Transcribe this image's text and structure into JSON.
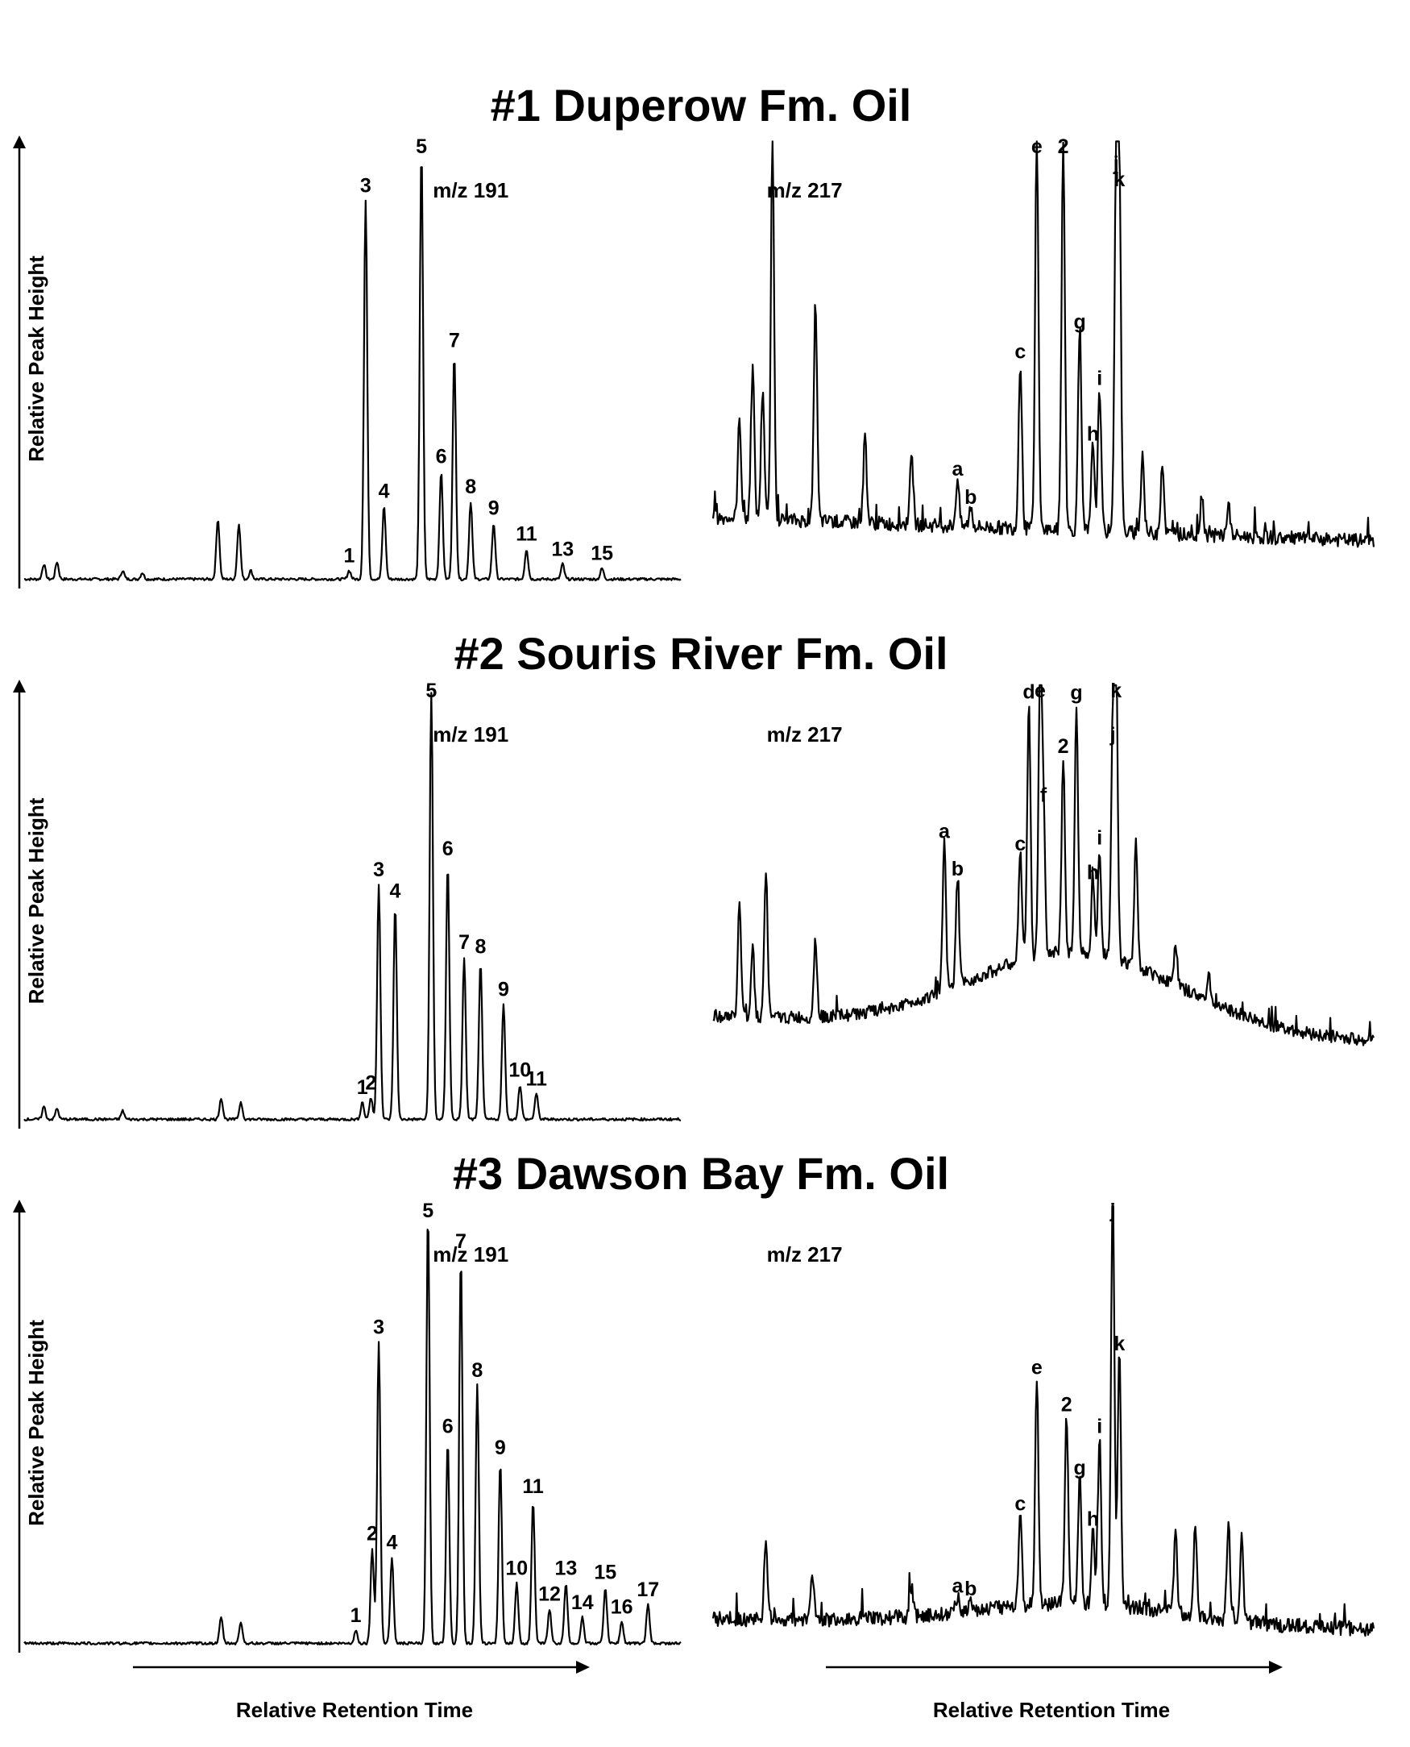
{
  "chart_data": [
    {
      "type": "line",
      "title": "#1 Duperow Fm. Oil",
      "ylabel": "Relative Peak Height",
      "xlabel": "",
      "traces": [
        {
          "label": "m/z 191",
          "peaks": [
            {
              "pos": 0.03,
              "height": 0.035
            },
            {
              "pos": 0.05,
              "height": 0.04
            },
            {
              "pos": 0.15,
              "height": 0.02
            },
            {
              "pos": 0.18,
              "height": 0.015
            },
            {
              "pos": 0.295,
              "height": 0.14
            },
            {
              "pos": 0.327,
              "height": 0.13
            },
            {
              "pos": 0.345,
              "height": 0.02
            },
            {
              "pos": 0.495,
              "height": 0.02,
              "label": "1"
            },
            {
              "pos": 0.52,
              "height": 0.88,
              "label": "3"
            },
            {
              "pos": 0.548,
              "height": 0.17,
              "label": "4"
            },
            {
              "pos": 0.605,
              "height": 1.0,
              "label": "5"
            },
            {
              "pos": 0.635,
              "height": 0.25,
              "label": "6"
            },
            {
              "pos": 0.655,
              "height": 0.52,
              "label": "7"
            },
            {
              "pos": 0.68,
              "height": 0.18,
              "label": "8"
            },
            {
              "pos": 0.715,
              "height": 0.13,
              "label": "9"
            },
            {
              "pos": 0.765,
              "height": 0.07,
              "label": "11"
            },
            {
              "pos": 0.82,
              "height": 0.035,
              "label": "13"
            },
            {
              "pos": 0.88,
              "height": 0.025,
              "label": "15"
            }
          ]
        },
        {
          "label": "m/z 217",
          "peaks": [
            {
              "pos": 0.04,
              "height": 0.25
            },
            {
              "pos": 0.06,
              "height": 0.38
            },
            {
              "pos": 0.075,
              "height": 0.32
            },
            {
              "pos": 0.09,
              "height": 0.95
            },
            {
              "pos": 0.155,
              "height": 0.55
            },
            {
              "pos": 0.23,
              "height": 0.22
            },
            {
              "pos": 0.3,
              "height": 0.18
            },
            {
              "pos": 0.37,
              "height": 0.12,
              "label": "a"
            },
            {
              "pos": 0.39,
              "height": 0.05,
              "label": "b"
            },
            {
              "pos": 0.465,
              "height": 0.42,
              "label": "c"
            },
            {
              "pos": 0.49,
              "height": 1.0,
              "label": "e"
            },
            {
              "pos": 0.53,
              "height": 0.98,
              "label": "2"
            },
            {
              "pos": 0.555,
              "height": 0.5,
              "label": "g"
            },
            {
              "pos": 0.575,
              "height": 0.22,
              "label": "h"
            },
            {
              "pos": 0.585,
              "height": 0.36,
              "label": "i"
            },
            {
              "pos": 0.61,
              "height": 0.9,
              "label": "j"
            },
            {
              "pos": 0.615,
              "height": 0.86,
              "label": "k"
            },
            {
              "pos": 0.65,
              "height": 0.2
            },
            {
              "pos": 0.68,
              "height": 0.18
            },
            {
              "pos": 0.74,
              "height": 0.1
            },
            {
              "pos": 0.78,
              "height": 0.08
            }
          ]
        }
      ]
    },
    {
      "type": "line",
      "title": "#2 Souris River Fm. Oil",
      "ylabel": "Relative Peak Height",
      "xlabel": "",
      "traces": [
        {
          "label": "m/z 191",
          "peaks": [
            {
              "pos": 0.03,
              "height": 0.03
            },
            {
              "pos": 0.05,
              "height": 0.025
            },
            {
              "pos": 0.15,
              "height": 0.02
            },
            {
              "pos": 0.3,
              "height": 0.05
            },
            {
              "pos": 0.33,
              "height": 0.04
            },
            {
              "pos": 0.515,
              "height": 0.04,
              "label": "1"
            },
            {
              "pos": 0.528,
              "height": 0.05,
              "label": "2"
            },
            {
              "pos": 0.54,
              "height": 0.55,
              "label": "3"
            },
            {
              "pos": 0.565,
              "height": 0.5,
              "label": "4"
            },
            {
              "pos": 0.62,
              "height": 1.0,
              "label": "5"
            },
            {
              "pos": 0.645,
              "height": 0.6,
              "label": "6"
            },
            {
              "pos": 0.67,
              "height": 0.38,
              "label": "7"
            },
            {
              "pos": 0.695,
              "height": 0.37,
              "label": "8"
            },
            {
              "pos": 0.73,
              "height": 0.27,
              "label": "9"
            },
            {
              "pos": 0.755,
              "height": 0.08,
              "label": "10"
            },
            {
              "pos": 0.78,
              "height": 0.06,
              "label": "11"
            }
          ]
        },
        {
          "label": "m/z 217",
          "peaks": [
            {
              "pos": 0.04,
              "height": 0.32
            },
            {
              "pos": 0.06,
              "height": 0.2
            },
            {
              "pos": 0.08,
              "height": 0.42
            },
            {
              "pos": 0.155,
              "height": 0.22
            },
            {
              "pos": 0.35,
              "height": 0.42,
              "label": "a"
            },
            {
              "pos": 0.37,
              "height": 0.3,
              "label": "b"
            },
            {
              "pos": 0.465,
              "height": 0.3,
              "label": "c"
            },
            {
              "pos": 0.478,
              "height": 0.72,
              "label": "d"
            },
            {
              "pos": 0.495,
              "height": 0.8,
              "label": "e"
            },
            {
              "pos": 0.5,
              "height": 0.42,
              "label": "f"
            },
            {
              "pos": 0.53,
              "height": 0.55,
              "label": "2"
            },
            {
              "pos": 0.55,
              "height": 0.7,
              "label": "g"
            },
            {
              "pos": 0.575,
              "height": 0.2,
              "label": "h"
            },
            {
              "pos": 0.585,
              "height": 0.3,
              "label": "i"
            },
            {
              "pos": 0.605,
              "height": 0.6,
              "label": "j"
            },
            {
              "pos": 0.61,
              "height": 0.85,
              "label": "k"
            },
            {
              "pos": 0.64,
              "height": 0.35
            },
            {
              "pos": 0.7,
              "height": 0.12
            },
            {
              "pos": 0.75,
              "height": 0.08
            }
          ]
        }
      ]
    },
    {
      "type": "line",
      "title": "#3 Dawson Bay Fm. Oil",
      "ylabel": "Relative Peak Height",
      "xlabel": "Relative Retention Time",
      "traces": [
        {
          "label": "m/z 191",
          "peaks": [
            {
              "pos": 0.3,
              "height": 0.06
            },
            {
              "pos": 0.33,
              "height": 0.05
            },
            {
              "pos": 0.505,
              "height": 0.03,
              "label": "1"
            },
            {
              "pos": 0.53,
              "height": 0.22,
              "label": "2"
            },
            {
              "pos": 0.54,
              "height": 0.7,
              "label": "3"
            },
            {
              "pos": 0.56,
              "height": 0.2,
              "label": "4"
            },
            {
              "pos": 0.615,
              "height": 1.0,
              "label": "5"
            },
            {
              "pos": 0.645,
              "height": 0.47,
              "label": "6"
            },
            {
              "pos": 0.665,
              "height": 0.9,
              "label": "7"
            },
            {
              "pos": 0.69,
              "height": 0.6,
              "label": "8"
            },
            {
              "pos": 0.725,
              "height": 0.42,
              "label": "9"
            },
            {
              "pos": 0.75,
              "height": 0.14,
              "label": "10"
            },
            {
              "pos": 0.775,
              "height": 0.33,
              "label": "11"
            },
            {
              "pos": 0.8,
              "height": 0.08,
              "label": "12"
            },
            {
              "pos": 0.825,
              "height": 0.14,
              "label": "13"
            },
            {
              "pos": 0.85,
              "height": 0.06,
              "label": "14"
            },
            {
              "pos": 0.885,
              "height": 0.13,
              "label": "15"
            },
            {
              "pos": 0.91,
              "height": 0.05,
              "label": "16"
            },
            {
              "pos": 0.95,
              "height": 0.09,
              "label": "17"
            }
          ]
        },
        {
          "label": "m/z 217",
          "peaks": [
            {
              "pos": 0.08,
              "height": 0.2
            },
            {
              "pos": 0.15,
              "height": 0.12
            },
            {
              "pos": 0.3,
              "height": 0.07
            },
            {
              "pos": 0.37,
              "height": 0.04,
              "label": "a"
            },
            {
              "pos": 0.39,
              "height": 0.03,
              "label": "b"
            },
            {
              "pos": 0.465,
              "height": 0.22,
              "label": "c"
            },
            {
              "pos": 0.49,
              "height": 0.54,
              "label": "e"
            },
            {
              "pos": 0.535,
              "height": 0.45,
              "label": "2"
            },
            {
              "pos": 0.555,
              "height": 0.3,
              "label": "g"
            },
            {
              "pos": 0.575,
              "height": 0.18,
              "label": "h"
            },
            {
              "pos": 0.585,
              "height": 0.4,
              "label": "i"
            },
            {
              "pos": 0.605,
              "height": 1.0,
              "label": "j"
            },
            {
              "pos": 0.615,
              "height": 0.6,
              "label": "k"
            },
            {
              "pos": 0.7,
              "height": 0.2
            },
            {
              "pos": 0.73,
              "height": 0.22
            },
            {
              "pos": 0.78,
              "height": 0.23
            },
            {
              "pos": 0.8,
              "height": 0.2
            }
          ]
        }
      ]
    }
  ]
}
